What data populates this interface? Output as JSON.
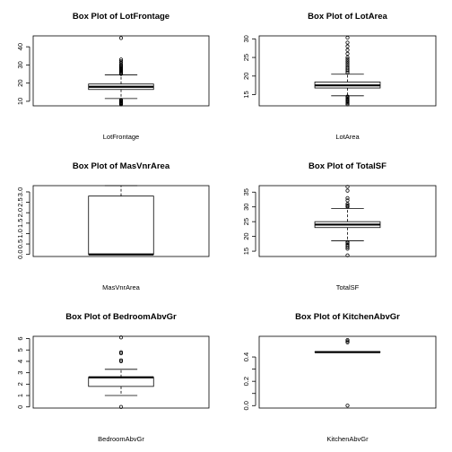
{
  "chart_data": [
    {
      "type": "box",
      "title": "Box Plot of  LotFrontage",
      "xlabel": "LotFrontage",
      "ylim": [
        7.5,
        46
      ],
      "yticks": [
        10,
        20,
        30,
        40
      ],
      "ytick_labels": [
        "10",
        "20",
        "30",
        "40"
      ],
      "box": {
        "whisker_low": 11.5,
        "q1": 16.5,
        "median": 18.0,
        "q3": 19.5,
        "whisker_high": 24.5
      },
      "outliers": [
        8.3,
        8.6,
        8.9,
        9.2,
        9.6,
        10.0,
        10.4,
        10.8,
        25.0,
        25.5,
        26.0,
        26.5,
        27.0,
        27.5,
        28.0,
        28.5,
        29.0,
        29.5,
        30.0,
        31.0,
        32.0,
        33.0,
        44.8
      ]
    },
    {
      "type": "box",
      "title": "Box Plot of  LotArea",
      "xlabel": "LotArea",
      "ylim": [
        12.0,
        30.8
      ],
      "yticks": [
        15,
        20,
        25,
        30
      ],
      "ytick_labels": [
        "15",
        "20",
        "25",
        "30"
      ],
      "box": {
        "whisker_low": 14.7,
        "q1": 16.8,
        "median": 17.5,
        "q3": 18.4,
        "whisker_high": 20.5
      },
      "outliers": [
        12.4,
        12.7,
        13.0,
        13.3,
        13.6,
        13.9,
        14.2,
        14.5,
        20.9,
        21.3,
        21.7,
        22.1,
        22.5,
        23.0,
        23.5,
        24.0,
        24.5,
        25.0,
        26.0,
        27.0,
        28.0,
        29.0,
        30.3
      ]
    },
    {
      "type": "box",
      "title": "Box Plot of  MasVnrArea",
      "xlabel": "MasVnrArea",
      "ylim": [
        -0.1,
        3.3
      ],
      "yticks": [
        0.0,
        0.5,
        1.0,
        1.5,
        2.0,
        2.5,
        3.0
      ],
      "ytick_labels": [
        "0.0",
        "0.5",
        "1.0",
        "1.5",
        "2.0",
        "2.5",
        "3.0"
      ],
      "box": {
        "whisker_low": 0.0,
        "q1": 0.0,
        "median": 0.0,
        "q3": 2.8,
        "whisker_high": 3.3
      },
      "outliers": []
    },
    {
      "type": "box",
      "title": "Box Plot of  TotalSF",
      "xlabel": "TotalSF",
      "ylim": [
        13.2,
        37.2
      ],
      "yticks": [
        15,
        20,
        25,
        30,
        35
      ],
      "ytick_labels": [
        "15",
        "20",
        "25",
        "30",
        "35"
      ],
      "box": {
        "whisker_low": 18.5,
        "q1": 23.0,
        "median": 24.0,
        "q3": 25.0,
        "whisker_high": 29.5
      },
      "outliers": [
        13.6,
        15.8,
        16.3,
        16.8,
        17.3,
        17.8,
        18.1,
        30.0,
        30.2,
        30.5,
        31.0,
        32.2,
        33.0,
        35.5,
        36.8
      ]
    },
    {
      "type": "box",
      "title": "Box Plot of  BedroomAbvGr",
      "xlabel": "BedroomAbvGr",
      "ylim": [
        -0.1,
        6.2
      ],
      "yticks": [
        0,
        1,
        2,
        3,
        4,
        5,
        6
      ],
      "ytick_labels": [
        "0",
        "1",
        "2",
        "3",
        "4",
        "5",
        "6"
      ],
      "box": {
        "whisker_low": 1.0,
        "q1": 1.8,
        "median": 2.6,
        "q3": 2.6,
        "whisker_high": 3.3
      },
      "outliers": [
        0.0,
        4.0,
        4.1,
        4.7,
        4.8,
        6.1
      ]
    },
    {
      "type": "box",
      "title": "Box Plot of  KitchenAbvGr",
      "xlabel": "KitchenAbvGr",
      "ylim": [
        -0.02,
        0.57
      ],
      "yticks": [
        0.0,
        0.1,
        0.2,
        0.3,
        0.4
      ],
      "ytick_labels": [
        "0.0",
        "",
        "0.2",
        "",
        "0.4"
      ],
      "box": {
        "whisker_low": 0.44,
        "q1": 0.44,
        "median": 0.44,
        "q3": 0.44,
        "whisker_high": 0.44
      },
      "outliers": [
        0.0,
        0.52,
        0.53,
        0.54
      ]
    }
  ]
}
